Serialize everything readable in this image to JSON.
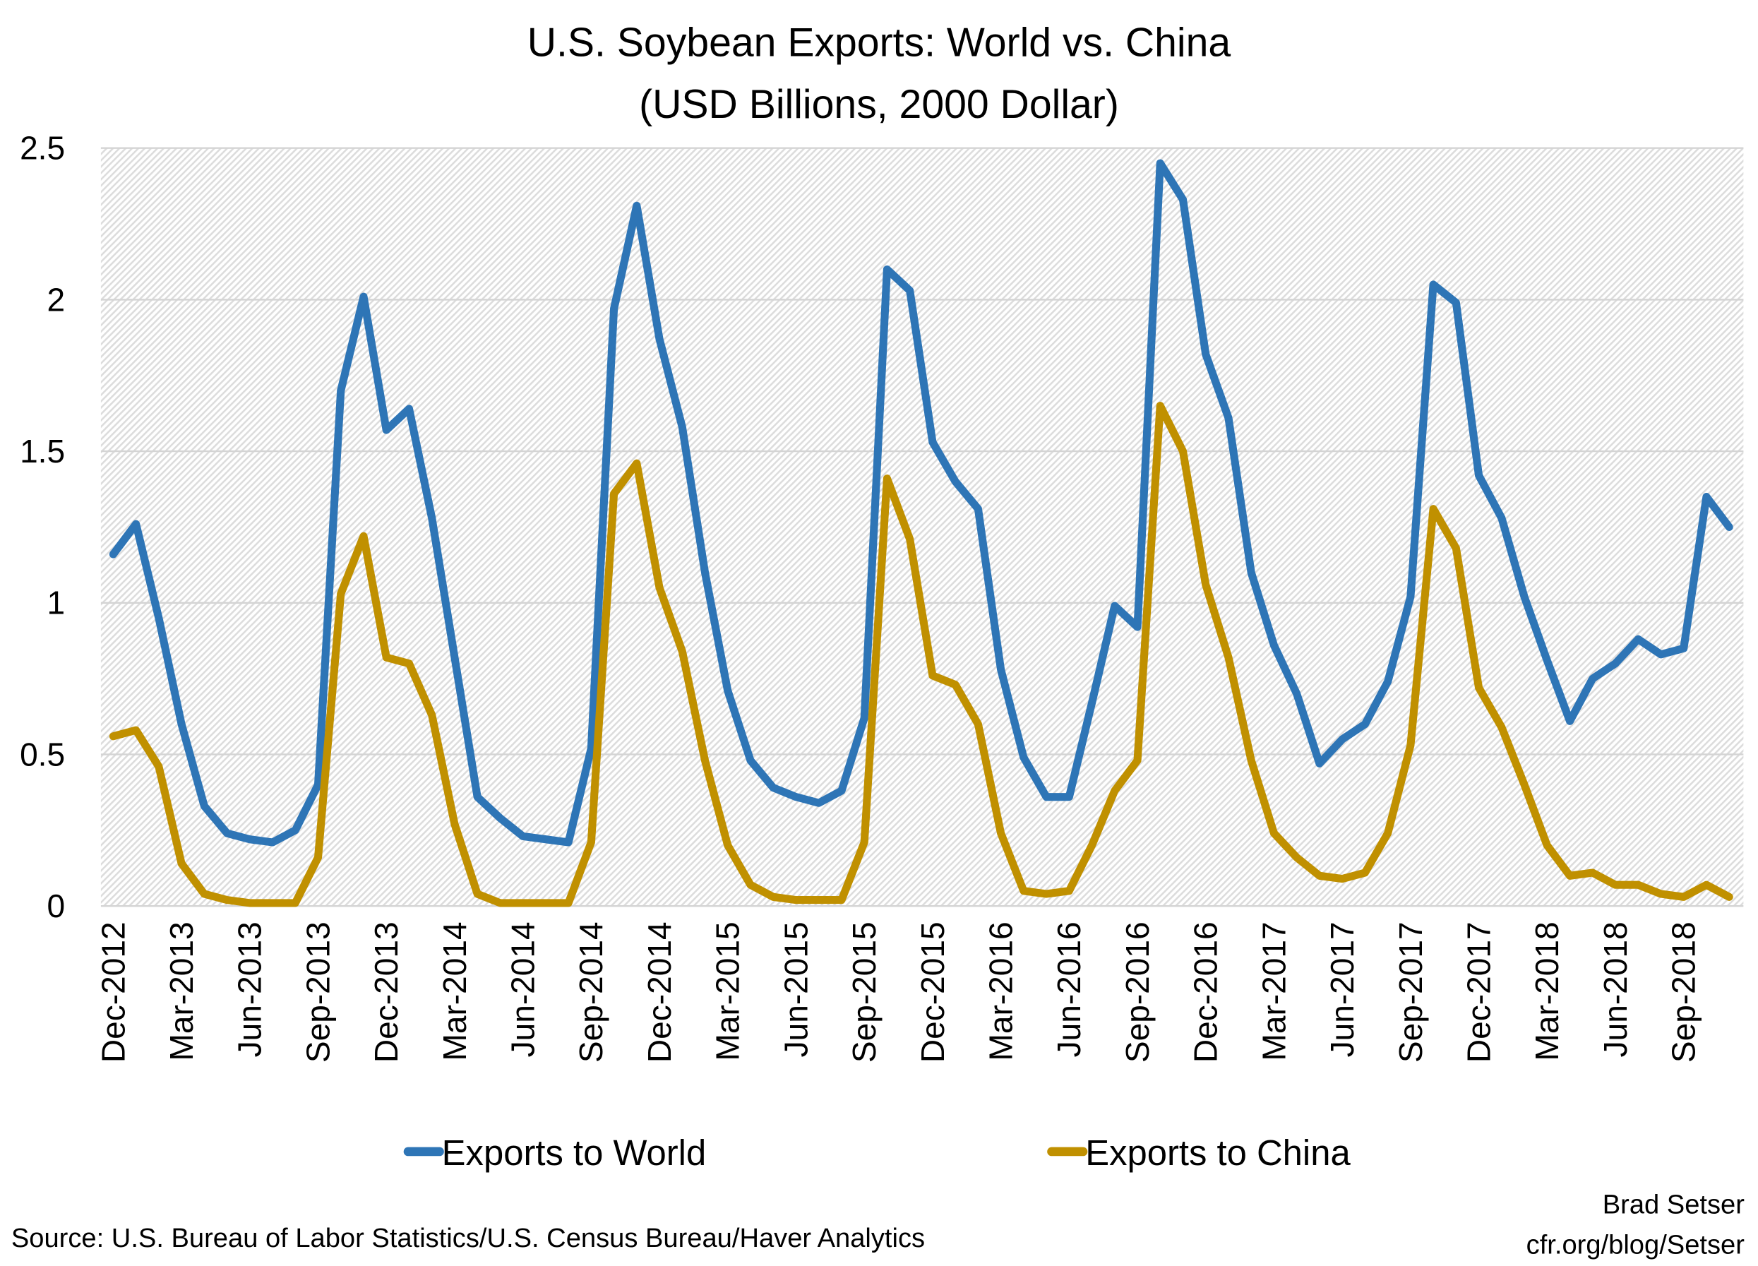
{
  "chart_data": {
    "type": "line",
    "title": "U.S. Soybean Exports: World vs. China",
    "subtitle": "(USD Billions, 2000 Dollar)",
    "xlabel": "",
    "ylabel": "",
    "ylim": [
      0,
      2.5
    ],
    "yticks": [
      "0",
      "0.5",
      "1",
      "1.5",
      "2",
      "2.5"
    ],
    "ytick_values": [
      0,
      0.5,
      1,
      1.5,
      2,
      2.5
    ],
    "grid": true,
    "legend_position": "bottom",
    "x_start": "Dec-2012",
    "x_end": "Nov-2018",
    "xtick_labels": [
      "Dec-2012",
      "Mar-2013",
      "Jun-2013",
      "Sep-2013",
      "Dec-2013",
      "Mar-2014",
      "Jun-2014",
      "Sep-2014",
      "Dec-2014",
      "Mar-2015",
      "Jun-2015",
      "Sep-2015",
      "Dec-2015",
      "Mar-2016",
      "Jun-2016",
      "Sep-2016",
      "Dec-2016",
      "Mar-2017",
      "Jun-2017",
      "Sep-2017",
      "Dec-2017",
      "Mar-2018",
      "Jun-2018",
      "Sep-2018"
    ],
    "series": [
      {
        "name": "Exports to World",
        "color": "#2e75b6",
        "values": [
          1.16,
          1.26,
          0.95,
          0.6,
          0.33,
          0.24,
          0.22,
          0.21,
          0.25,
          0.4,
          1.7,
          2.01,
          1.57,
          1.64,
          1.28,
          0.82,
          0.36,
          0.29,
          0.23,
          0.22,
          0.21,
          0.52,
          1.97,
          2.31,
          1.87,
          1.58,
          1.1,
          0.71,
          0.48,
          0.39,
          0.36,
          0.34,
          0.38,
          0.62,
          2.1,
          2.03,
          1.53,
          1.4,
          1.31,
          0.78,
          0.49,
          0.36,
          0.36,
          0.67,
          0.99,
          0.92,
          2.45,
          2.33,
          1.82,
          1.61,
          1.1,
          0.86,
          0.7,
          0.47,
          0.55,
          0.6,
          0.74,
          1.02,
          2.05,
          1.99,
          1.42,
          1.28,
          1.02,
          0.81,
          0.61,
          0.75,
          0.8,
          0.88,
          0.83,
          0.85,
          1.35,
          1.25
        ]
      },
      {
        "name": "Exports to China",
        "color": "#c09000",
        "values": [
          0.56,
          0.58,
          0.46,
          0.14,
          0.04,
          0.02,
          0.01,
          0.01,
          0.01,
          0.16,
          1.03,
          1.22,
          0.82,
          0.8,
          0.63,
          0.27,
          0.04,
          0.01,
          0.01,
          0.01,
          0.01,
          0.21,
          1.36,
          1.46,
          1.05,
          0.84,
          0.48,
          0.2,
          0.07,
          0.03,
          0.02,
          0.02,
          0.02,
          0.21,
          1.41,
          1.21,
          0.76,
          0.73,
          0.6,
          0.24,
          0.05,
          0.04,
          0.05,
          0.2,
          0.38,
          0.48,
          1.65,
          1.5,
          1.06,
          0.82,
          0.48,
          0.24,
          0.16,
          0.1,
          0.09,
          0.11,
          0.24,
          0.53,
          1.31,
          1.18,
          0.72,
          0.59,
          0.4,
          0.2,
          0.1,
          0.11,
          0.07,
          0.07,
          0.04,
          0.03,
          0.07,
          0.03
        ]
      }
    ]
  },
  "footer": {
    "source": "Source: U.S. Bureau of Labor Statistics/U.S. Census Bureau/Haver Analytics",
    "author": "Brad Setser",
    "url": "cfr.org/blog/Setser"
  }
}
